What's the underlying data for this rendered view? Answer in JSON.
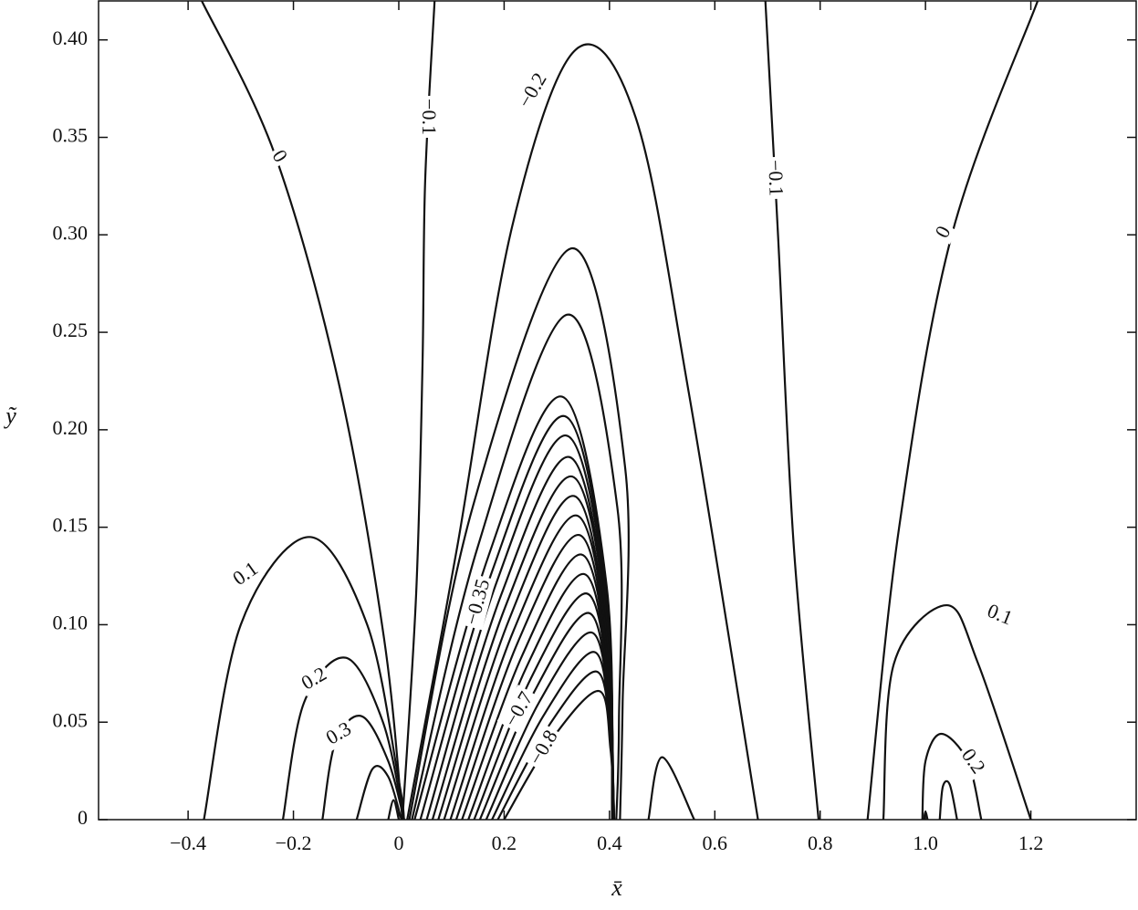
{
  "chart_data": {
    "type": "contour",
    "x_label": "x̄",
    "y_label": "ỹ",
    "xlim": [
      -0.57,
      1.4
    ],
    "ylim": [
      0,
      0.42
    ],
    "xticks": [
      {
        "value": -0.4,
        "label": "−0.4"
      },
      {
        "value": -0.2,
        "label": "−0.2"
      },
      0,
      0.2,
      0.4,
      0.6,
      0.8,
      {
        "value": 1.0,
        "label": "1.0"
      },
      1.2
    ],
    "yticks": [
      0,
      0.05,
      {
        "value": 0.1,
        "label": "0.10"
      },
      0.15,
      {
        "value": 0.2,
        "label": "0.20"
      },
      0.25,
      {
        "value": 0.3,
        "label": "0.30"
      },
      0.35,
      {
        "value": 0.4,
        "label": "0.40"
      }
    ],
    "color": "#111111",
    "contours": [
      {
        "label": "0",
        "x": [
          -0.374,
          -0.235,
          -0.114,
          -0.028,
          0.007
        ],
        "y": [
          0.42,
          0.341,
          0.224,
          0.093,
          0
        ]
      },
      {
        "label": "−0.1",
        "x": [
          0.068,
          0.05,
          0.045,
          0.033,
          0.007
        ],
        "y": [
          0.42,
          0.327,
          0.233,
          0.116,
          0
        ]
      },
      {
        "label": "−0.2",
        "x": [
          0.016,
          0.111,
          0.215,
          0.336,
          0.45,
          0.55,
          0.682
        ],
        "y": [
          0,
          0.14,
          0.304,
          0.395,
          0.36,
          0.22,
          0
        ]
      },
      {
        "x": [
          0.02,
          0.14,
          0.327,
          0.43,
          0.425,
          0.42
        ],
        "y": [
          0,
          0.16,
          0.293,
          0.18,
          0.06,
          0
        ]
      },
      {
        "x": [
          0.025,
          0.15,
          0.319,
          0.415,
          0.418,
          0.413
        ],
        "y": [
          0,
          0.14,
          0.259,
          0.16,
          0.05,
          0
        ]
      },
      {
        "label": "−0.35",
        "x": [
          0.03,
          0.17,
          0.31,
          0.395,
          0.405
        ],
        "y": [
          0,
          0.135,
          0.217,
          0.119,
          0
        ]
      },
      {
        "x": [
          0.041,
          0.178,
          0.315,
          0.395,
          0.405
        ],
        "y": [
          0,
          0.128,
          0.207,
          0.114,
          0
        ]
      },
      {
        "x": [
          0.053,
          0.186,
          0.319,
          0.396,
          0.405
        ],
        "y": [
          0,
          0.122,
          0.197,
          0.108,
          0
        ]
      },
      {
        "x": [
          0.064,
          0.194,
          0.324,
          0.396,
          0.405
        ],
        "y": [
          0,
          0.115,
          0.186,
          0.102,
          0
        ]
      },
      {
        "x": [
          0.075,
          0.202,
          0.329,
          0.397,
          0.406
        ],
        "y": [
          0,
          0.109,
          0.176,
          0.097,
          0
        ]
      },
      {
        "x": [
          0.086,
          0.21,
          0.333,
          0.397,
          0.406
        ],
        "y": [
          0,
          0.103,
          0.166,
          0.091,
          0
        ]
      },
      {
        "x": [
          0.098,
          0.218,
          0.338,
          0.398,
          0.406
        ],
        "y": [
          0,
          0.097,
          0.156,
          0.086,
          0
        ]
      },
      {
        "label": "−0.7",
        "x": [
          0.109,
          0.226,
          0.343,
          0.398,
          0.407
        ],
        "y": [
          0,
          0.091,
          0.146,
          0.08,
          0
        ]
      },
      {
        "x": [
          0.12,
          0.234,
          0.347,
          0.399,
          0.407
        ],
        "y": [
          0,
          0.084,
          0.136,
          0.075,
          0
        ]
      },
      {
        "label": "−0.8",
        "x": [
          0.132,
          0.242,
          0.352,
          0.399,
          0.407
        ],
        "y": [
          0,
          0.078,
          0.126,
          0.069,
          0
        ]
      },
      {
        "x": [
          0.143,
          0.25,
          0.357,
          0.4,
          0.408
        ],
        "y": [
          0,
          0.072,
          0.116,
          0.064,
          0
        ]
      },
      {
        "x": [
          0.154,
          0.258,
          0.361,
          0.4,
          0.408
        ],
        "y": [
          0,
          0.066,
          0.106,
          0.058,
          0
        ]
      },
      {
        "x": [
          0.166,
          0.266,
          0.366,
          0.401,
          0.408
        ],
        "y": [
          0,
          0.06,
          0.096,
          0.053,
          0
        ]
      },
      {
        "x": [
          0.177,
          0.274,
          0.371,
          0.401,
          0.409
        ],
        "y": [
          0,
          0.053,
          0.086,
          0.047,
          0
        ]
      },
      {
        "x": [
          0.188,
          0.282,
          0.375,
          0.402,
          0.409
        ],
        "y": [
          0,
          0.047,
          0.076,
          0.042,
          0
        ]
      },
      {
        "x": [
          0.2,
          0.29,
          0.38,
          0.402,
          0.409
        ],
        "y": [
          0,
          0.041,
          0.066,
          0.036,
          0
        ]
      },
      {
        "x": [
          0.474,
          0.5,
          0.561
        ],
        "y": [
          0,
          0.032,
          0
        ]
      },
      {
        "label": "0.1",
        "x": [
          -0.37,
          -0.3,
          -0.17,
          -0.06,
          0.0,
          0.01
        ],
        "y": [
          0,
          0.1,
          0.145,
          0.1,
          0.02,
          0
        ]
      },
      {
        "label": "0.2",
        "x": [
          -0.22,
          -0.18,
          -0.1,
          -0.03,
          0.01
        ],
        "y": [
          0,
          0.06,
          0.083,
          0.05,
          0
        ]
      },
      {
        "label": "0.3",
        "x": [
          -0.145,
          -0.12,
          -0.07,
          -0.02,
          0.01
        ],
        "y": [
          0,
          0.04,
          0.053,
          0.03,
          0
        ]
      },
      {
        "x": [
          -0.08,
          -0.05,
          -0.02,
          0.005
        ],
        "y": [
          0,
          0.026,
          0.022,
          0
        ]
      },
      {
        "x": [
          -0.02,
          -0.01,
          0.0
        ],
        "y": [
          0,
          0.01,
          0
        ]
      },
      {
        "label": "−0.1",
        "x": [
          0.696,
          0.72,
          0.75,
          0.797
        ],
        "y": [
          0.42,
          0.3,
          0.14,
          0
        ]
      },
      {
        "label": "0",
        "x": [
          1.213,
          1.05,
          0.95,
          0.89
        ],
        "y": [
          0.42,
          0.3,
          0.15,
          0
        ]
      },
      {
        "label": "0.1",
        "x": [
          0.92,
          0.94,
          1.04,
          1.1,
          1.2
        ],
        "y": [
          0,
          0.08,
          0.11,
          0.08,
          0
        ]
      },
      {
        "label": "0.2",
        "x": [
          0.994,
          1.0,
          1.03,
          1.08,
          1.106
        ],
        "y": [
          0,
          0.03,
          0.044,
          0.03,
          0
        ]
      },
      {
        "x": [
          1.027,
          1.033,
          1.046,
          1.06
        ],
        "y": [
          0,
          0.017,
          0.018,
          0
        ]
      },
      {
        "x": [
          0.997,
          1.0,
          1.004
        ],
        "y": [
          0,
          0.004,
          0
        ]
      }
    ]
  }
}
